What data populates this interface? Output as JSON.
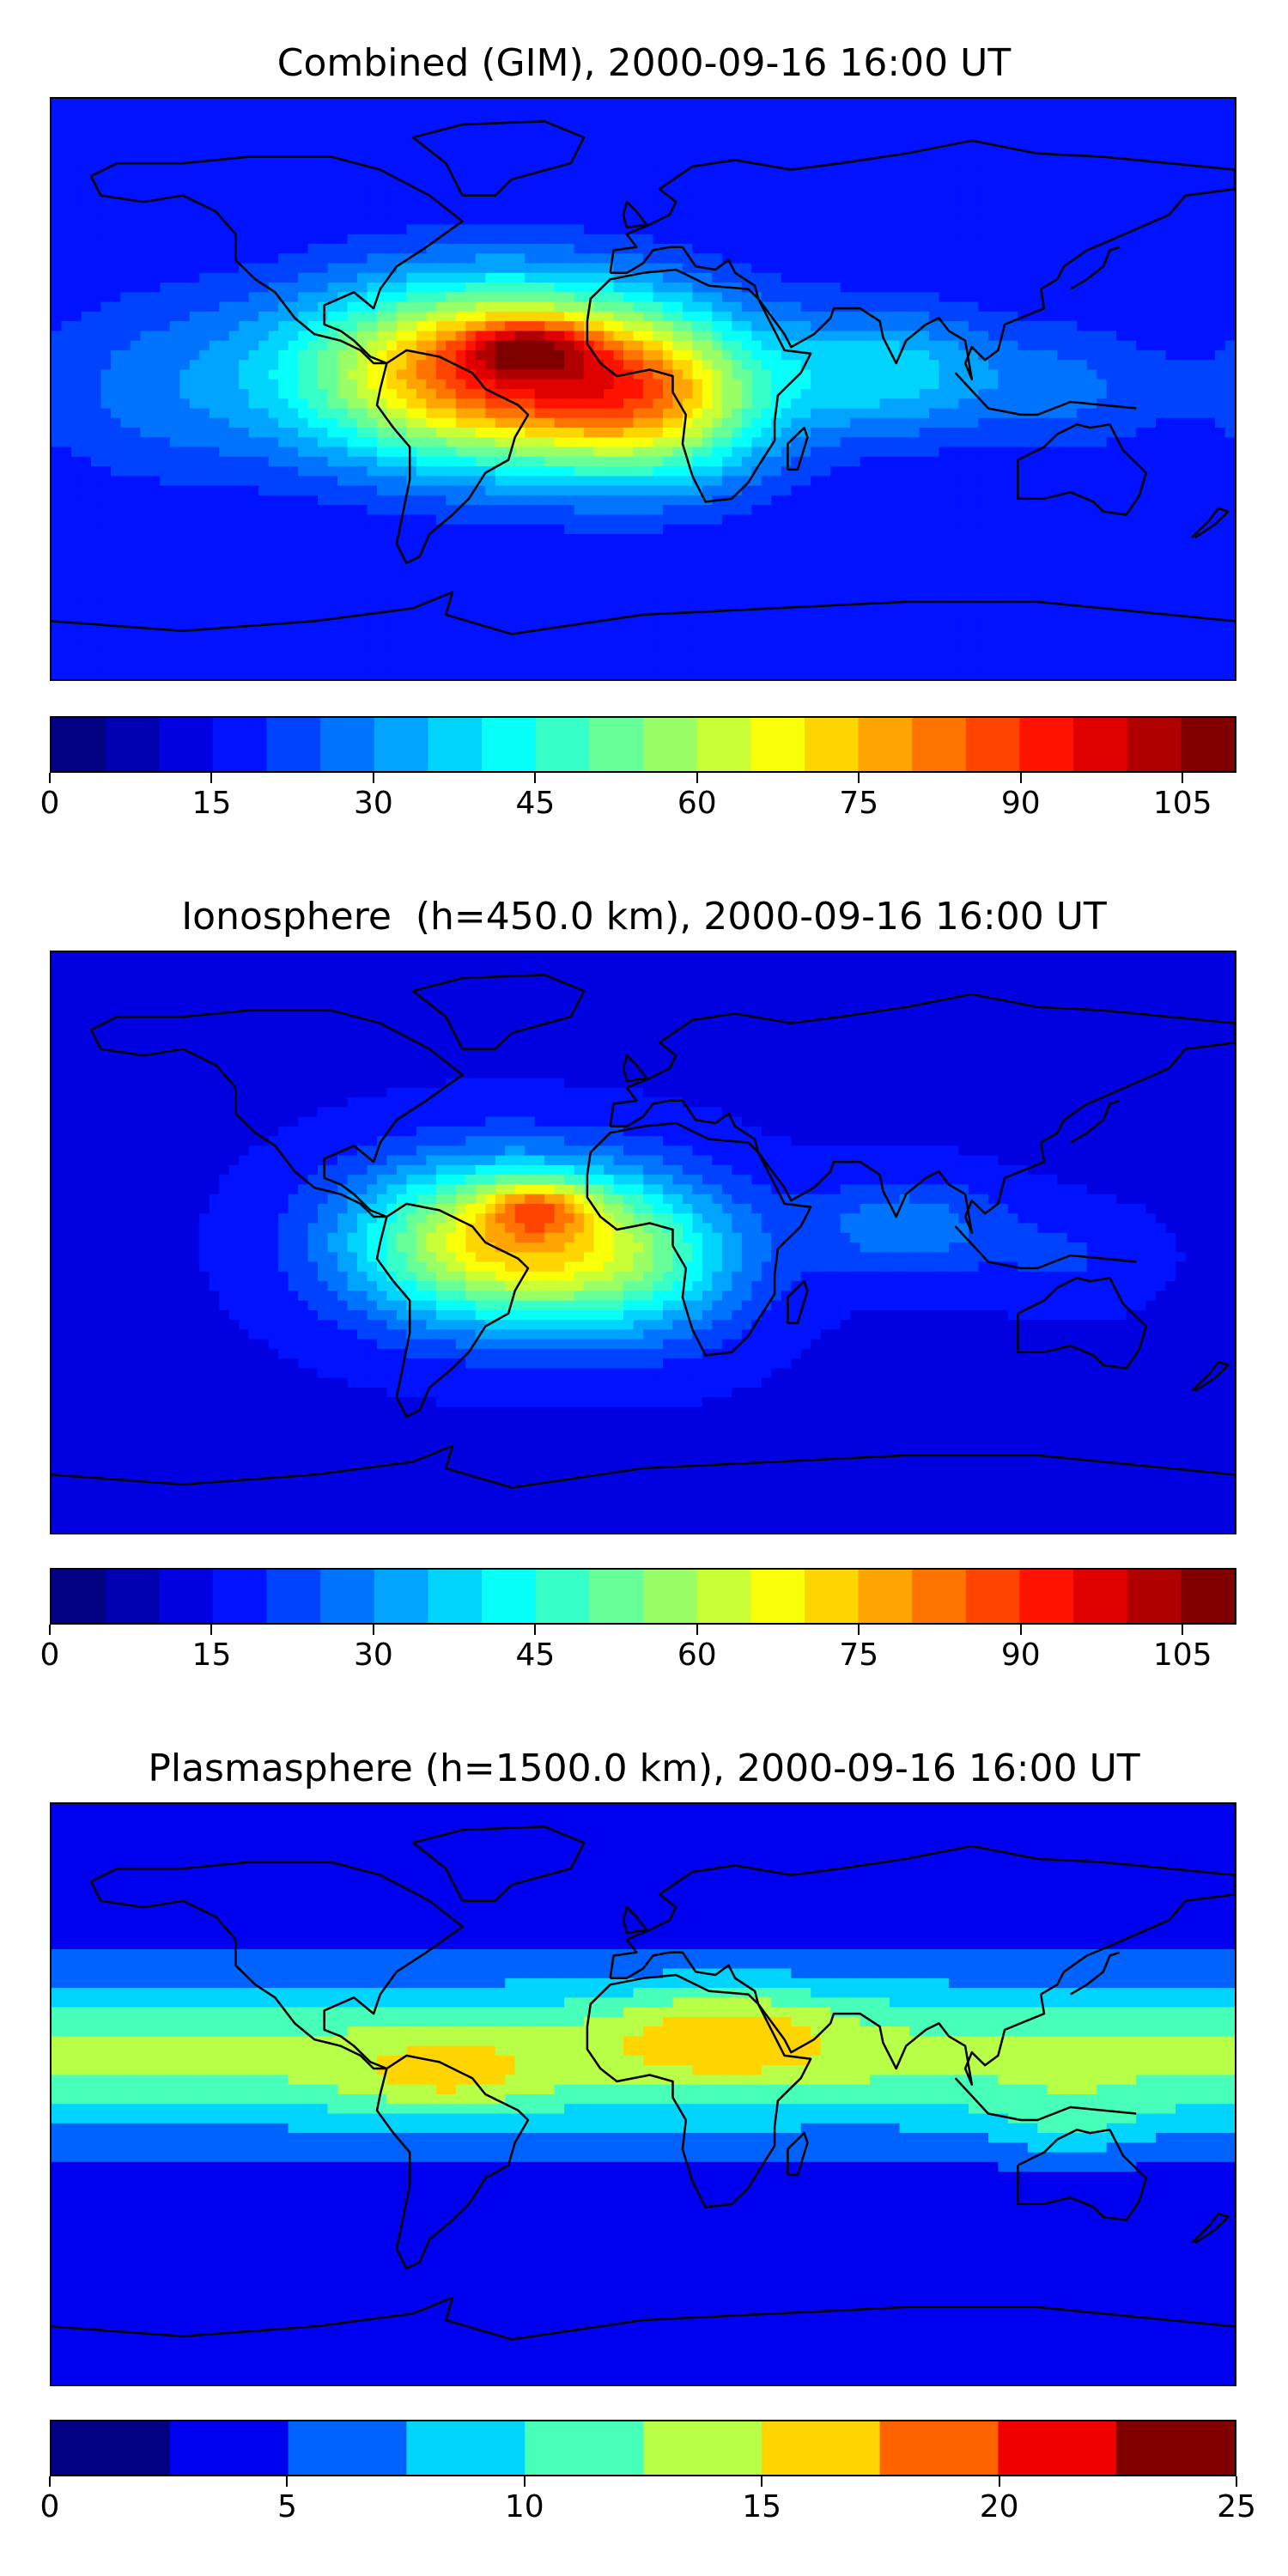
{
  "panels": [
    {
      "id": "combined",
      "title": "Combined (GIM), 2000-09-16 16:00 UT",
      "colorbar": {
        "vmin": 0,
        "vmax": 110,
        "levels": 22,
        "ticks": [
          "0",
          "15",
          "30",
          "45",
          "60",
          "75",
          "90",
          "105"
        ],
        "tick_values": [
          0,
          15,
          30,
          45,
          60,
          75,
          90,
          105
        ]
      },
      "field": {
        "base": 15,
        "blobs": [
          {
            "lon": -45,
            "lat": 5,
            "amp": 75,
            "sx": 60,
            "sy": 28
          },
          {
            "lon": -35,
            "lat": 13,
            "amp": 25,
            "sx": 18,
            "sy": 8
          },
          {
            "lon": 5,
            "lat": -5,
            "amp": 35,
            "sx": 35,
            "sy": 25
          },
          {
            "lon": 75,
            "lat": 5,
            "amp": 22,
            "sx": 35,
            "sy": 20
          },
          {
            "lon": 130,
            "lat": 0,
            "amp": 10,
            "sx": 30,
            "sy": 20
          },
          {
            "lon": -150,
            "lat": 0,
            "amp": 10,
            "sx": 40,
            "sy": 30
          }
        ]
      }
    },
    {
      "id": "ionosphere",
      "title": "Ionosphere  (h=450.0 km), 2000-09-16 16:00 UT",
      "colorbar": {
        "vmin": 0,
        "vmax": 110,
        "levels": 22,
        "ticks": [
          "0",
          "15",
          "30",
          "45",
          "60",
          "75",
          "90",
          "105"
        ],
        "tick_values": [
          0,
          15,
          30,
          45,
          60,
          75,
          90,
          105
        ]
      },
      "field": {
        "base": 14,
        "blobs": [
          {
            "lon": -45,
            "lat": 0,
            "amp": 55,
            "sx": 45,
            "sy": 25
          },
          {
            "lon": -32,
            "lat": 11,
            "amp": 25,
            "sx": 16,
            "sy": 8
          },
          {
            "lon": 0,
            "lat": -5,
            "amp": 25,
            "sx": 35,
            "sy": 25
          },
          {
            "lon": 80,
            "lat": 5,
            "amp": 15,
            "sx": 30,
            "sy": 15
          },
          {
            "lon": 130,
            "lat": -5,
            "amp": 6,
            "sx": 25,
            "sy": 15
          }
        ]
      }
    },
    {
      "id": "plasmasphere",
      "title": "Plasmasphere (h=1500.0 km), 2000-09-16 16:00 UT",
      "colorbar": {
        "vmin": 0,
        "vmax": 25,
        "levels": 10,
        "ticks": [
          "0",
          "5",
          "10",
          "15",
          "20",
          "25"
        ],
        "tick_values": [
          0,
          5,
          10,
          15,
          20,
          25
        ]
      },
      "field": {
        "base": 3,
        "band": {
          "lat": 12,
          "amp": 10,
          "sy": 25
        },
        "blobs": [
          {
            "lon": 25,
            "lat": 20,
            "amp": 5,
            "sx": 35,
            "sy": 15
          },
          {
            "lon": -60,
            "lat": 5,
            "amp": 4,
            "sx": 30,
            "sy": 12
          },
          {
            "lon": 130,
            "lat": -10,
            "amp": 3,
            "sx": 25,
            "sy": 12
          }
        ]
      }
    }
  ],
  "colormap": "jet",
  "coastline_color": "#000000"
}
